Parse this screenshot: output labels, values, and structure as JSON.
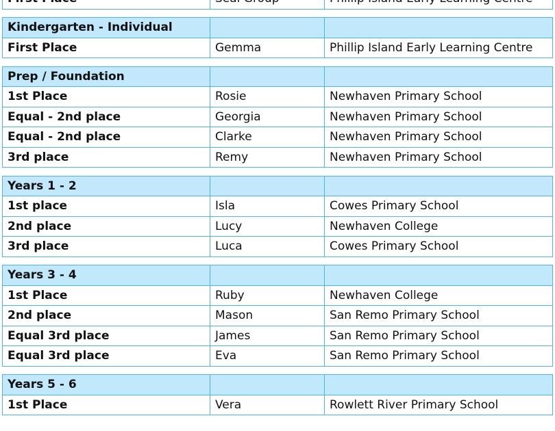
{
  "colors": {
    "header_bg": "#c2e8fc",
    "border": "#4ab4ef"
  },
  "sections": [
    {
      "title": "",
      "rows": [
        [
          "First Place",
          "Seal Group",
          "Phillip Island Early Learning Centre"
        ]
      ]
    },
    {
      "title": "Kindergarten - Individual",
      "rows": [
        [
          "First Place",
          "Gemma",
          "Phillip Island Early Learning Centre"
        ]
      ]
    },
    {
      "title": "Prep / Foundation",
      "rows": [
        [
          "1st Place",
          "Rosie",
          "Newhaven Primary School"
        ],
        [
          "Equal - 2nd place",
          "Georgia",
          "Newhaven Primary School"
        ],
        [
          "Equal - 2nd place",
          "Clarke",
          "Newhaven Primary School"
        ],
        [
          "3rd place",
          "Remy",
          "Newhaven Primary School"
        ]
      ]
    },
    {
      "title": "Years 1 - 2",
      "rows": [
        [
          "1st place",
          "Isla",
          "Cowes Primary School"
        ],
        [
          "2nd place",
          "Lucy",
          "Newhaven College"
        ],
        [
          "3rd place",
          "Luca",
          "Cowes Primary School"
        ]
      ]
    },
    {
      "title": "Years 3 - 4",
      "rows": [
        [
          "1st Place",
          "Ruby",
          "Newhaven College"
        ],
        [
          "2nd place",
          "Mason",
          "San Remo Primary School"
        ],
        [
          "Equal 3rd place",
          "James",
          "San Remo Primary School"
        ],
        [
          "Equal 3rd place",
          "Eva",
          "San Remo Primary School"
        ]
      ]
    },
    {
      "title": "Years 5 - 6",
      "rows": [
        [
          "1st Place",
          "Vera",
          "Rowlett River Primary School"
        ]
      ]
    }
  ]
}
